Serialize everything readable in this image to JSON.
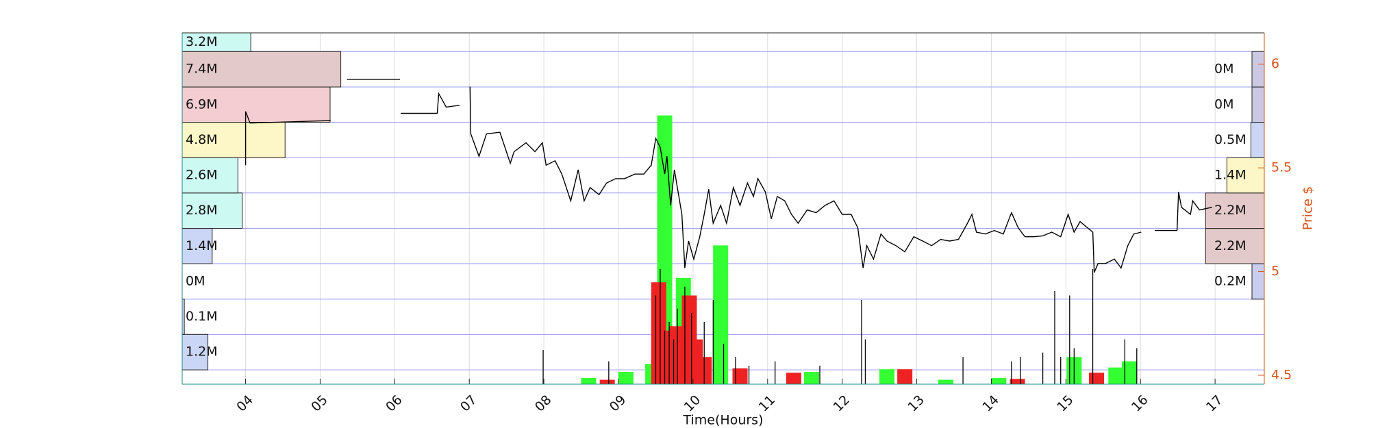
{
  "chart_data": {
    "type": "line",
    "x_axis_label": "Time(Hours)",
    "y2_axis_label": "Price $",
    "xlim": [
      3.15,
      17.66
    ],
    "xticks": [
      {
        "value": 4,
        "label": "04"
      },
      {
        "value": 5,
        "label": "05"
      },
      {
        "value": 6,
        "label": "06"
      },
      {
        "value": 7,
        "label": "07"
      },
      {
        "value": 8,
        "label": "08"
      },
      {
        "value": 9,
        "label": "09"
      },
      10,
      11,
      12,
      13,
      14,
      15,
      16,
      17
    ],
    "y2lim": [
      4.457,
      6.151
    ],
    "y2ticks": [
      4.5,
      5,
      5.5,
      6
    ],
    "grid": true,
    "price": {
      "axis": "y2",
      "color": "#000000",
      "x": [
        4.0,
        4.0,
        4.06,
        5.14,
        null,
        5.36,
        6.07,
        null,
        6.08,
        6.57,
        6.59,
        6.69,
        6.87,
        null,
        7.01,
        7.02,
        7.13,
        7.23,
        7.41,
        7.55,
        7.6,
        7.76,
        7.88,
        7.98,
        8.03,
        8.15,
        8.24,
        8.36,
        8.46,
        8.54,
        8.62,
        8.74,
        8.84,
        8.96,
        9.08,
        9.22,
        9.34,
        9.44,
        9.5,
        9.56,
        9.62,
        9.65,
        9.7,
        9.75,
        9.79,
        9.85,
        9.89,
        9.94,
        10.01,
        10.09,
        10.15,
        10.21,
        10.27,
        10.37,
        10.45,
        10.54,
        10.63,
        10.73,
        10.81,
        10.87,
        10.97,
        11.05,
        11.13,
        11.23,
        11.32,
        11.41,
        11.53,
        11.65,
        11.77,
        11.89,
        12.0,
        12.12,
        12.21,
        12.28,
        12.33,
        12.42,
        12.52,
        12.6,
        12.72,
        12.84,
        12.96,
        13.08,
        13.2,
        13.32,
        13.44,
        13.56,
        13.68,
        13.74,
        13.8,
        13.92,
        14.04,
        14.16,
        14.27,
        14.36,
        14.45,
        14.57,
        14.69,
        14.81,
        14.93,
        15.03,
        15.11,
        15.19,
        15.29,
        15.36,
        15.38,
        15.43,
        15.53,
        15.65,
        15.74,
        15.83,
        15.91,
        16.01,
        null,
        16.19,
        16.49,
        16.51,
        16.55,
        16.67,
        16.7,
        16.79,
        16.96
      ],
      "values": [
        5.513,
        5.772,
        5.716,
        5.728,
        null,
        5.927,
        5.927,
        null,
        5.763,
        5.763,
        5.858,
        5.793,
        5.802,
        null,
        5.892,
        5.664,
        5.556,
        5.664,
        5.672,
        5.522,
        5.578,
        5.621,
        5.578,
        5.621,
        5.513,
        5.534,
        5.47,
        5.341,
        5.491,
        5.341,
        5.405,
        5.371,
        5.427,
        5.448,
        5.448,
        5.47,
        5.47,
        5.513,
        5.642,
        5.599,
        5.47,
        5.556,
        5.319,
        5.491,
        5.405,
        5.276,
        5.017,
        5.147,
        5.06,
        5.168,
        5.276,
        5.397,
        5.233,
        5.319,
        5.233,
        5.405,
        5.319,
        5.427,
        5.362,
        5.448,
        5.384,
        5.254,
        5.362,
        5.341,
        5.276,
        5.233,
        5.297,
        5.284,
        5.319,
        5.341,
        5.276,
        5.276,
        5.211,
        5.017,
        5.125,
        5.06,
        5.181,
        5.147,
        5.125,
        5.095,
        5.168,
        5.147,
        5.125,
        5.155,
        5.147,
        5.155,
        5.233,
        5.276,
        5.19,
        5.181,
        5.198,
        5.181,
        5.284,
        5.211,
        5.168,
        5.168,
        5.172,
        5.19,
        5.168,
        5.276,
        5.19,
        5.241,
        5.211,
        5.19,
        4.996,
        5.039,
        5.039,
        5.06,
        5.017,
        5.125,
        5.181,
        5.19,
        null,
        5.198,
        5.198,
        5.384,
        5.31,
        5.276,
        5.341,
        5.297,
        5.31
      ]
    },
    "volume_lim": [
      0,
      400
    ],
    "volume_bars": [
      {
        "color": "#33ff33",
        "x": [
          8.6,
          9.1,
          9.46,
          9.62,
          9.87,
          10.37,
          11.59,
          12.6,
          14.1,
          15.11,
          15.85,
          13.39,
          15.67
        ],
        "values": [
          7,
          14,
          23,
          306,
          121,
          158,
          14,
          17,
          7,
          31,
          26,
          5,
          19
        ]
      },
      {
        "color": "#ee2222",
        "x": [
          9.54,
          9.7,
          9.78,
          9.95,
          10.03,
          10.15,
          10.63,
          11.35,
          12.84,
          14.35,
          15.41,
          8.85
        ],
        "values": [
          116,
          61,
          66,
          101,
          51,
          31,
          18,
          13,
          17,
          6,
          13,
          5
        ]
      },
      {
        "color": "#000000",
        "x": [
          7.99,
          8.87,
          9.5,
          9.56,
          9.62,
          9.68,
          9.74,
          9.79,
          9.89,
          9.98,
          10.15,
          10.27,
          10.41,
          10.57,
          10.75,
          11.1,
          11.7,
          12.26,
          12.31,
          13.62,
          14.27,
          14.39,
          14.69,
          14.85,
          14.93,
          15.05,
          15.11,
          15.36,
          15.79,
          15.95
        ],
        "values": [
          39,
          26,
          101,
          131,
          61,
          71,
          51,
          86,
          111,
          81,
          71,
          96,
          46,
          31,
          21,
          26,
          21,
          96,
          51,
          31,
          26,
          31,
          36,
          106,
          31,
          101,
          41,
          131,
          51,
          41
        ]
      }
    ],
    "left_profile": {
      "bins": [
        4.526,
        4.697,
        4.867,
        5.038,
        5.208,
        5.379,
        5.549,
        5.72,
        5.89,
        6.061,
        6.231
      ],
      "values": [
        1.2,
        0.1,
        0,
        1.4,
        2.8,
        2.6,
        4.8,
        6.9,
        7.4,
        3.2
      ],
      "value_labels": [
        "1.2M",
        "0.1M",
        "0M",
        "1.4M",
        "2.8M",
        "2.6M",
        "4.8M",
        "6.9M",
        "7.4M",
        "3.2M"
      ],
      "colors": [
        "#cbd6f6",
        "#cbd6f6",
        "#cbd6f6",
        "#cbd6f6",
        "#cdf9f3",
        "#cdf9f3",
        "#fdf6c6",
        "#f3cdd1",
        "#e3c9c9",
        "#cdf9f3"
      ]
    },
    "right_profile": {
      "bins": [
        4.867,
        5.038,
        5.208,
        5.379,
        5.549,
        5.72,
        5.89,
        6.061
      ],
      "values": [
        0.2,
        2.2,
        2.2,
        1.4,
        0.5,
        0,
        0
      ],
      "value_labels": [
        "0.2M",
        "2.2M",
        "2.2M",
        "1.4M",
        "0.5M",
        "0M",
        "0M"
      ],
      "colors": [
        "#c9cdf0",
        "#e3c9c9",
        "#e3c9c9",
        "#fdf6c6",
        "#cbd6f6",
        "#cbc8e3",
        "#cbc8e3"
      ]
    }
  }
}
